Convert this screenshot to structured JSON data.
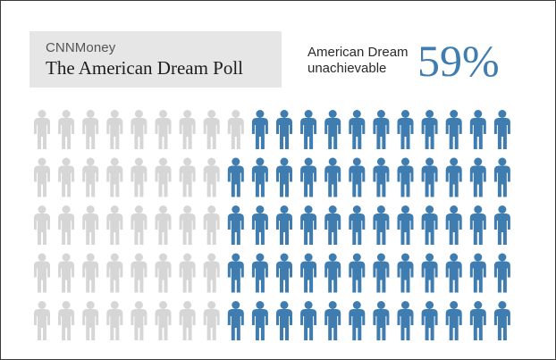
{
  "header": {
    "brand": "CNNMoney",
    "title": "The American Dream Poll"
  },
  "stat": {
    "label_line1": "American Dream",
    "label_line2": "unachievable",
    "value": "59%"
  },
  "colors": {
    "highlight": "#3f7cb0",
    "base": "#d6d6d6"
  },
  "chart_data": {
    "type": "pictogram",
    "icon": "person-icon",
    "rows": 5,
    "columns": 20,
    "total_icons": 100,
    "highlighted_icons": 59,
    "highlighted_percent": 59,
    "fill_order": "right-to-left, column by column, bottom row first"
  }
}
